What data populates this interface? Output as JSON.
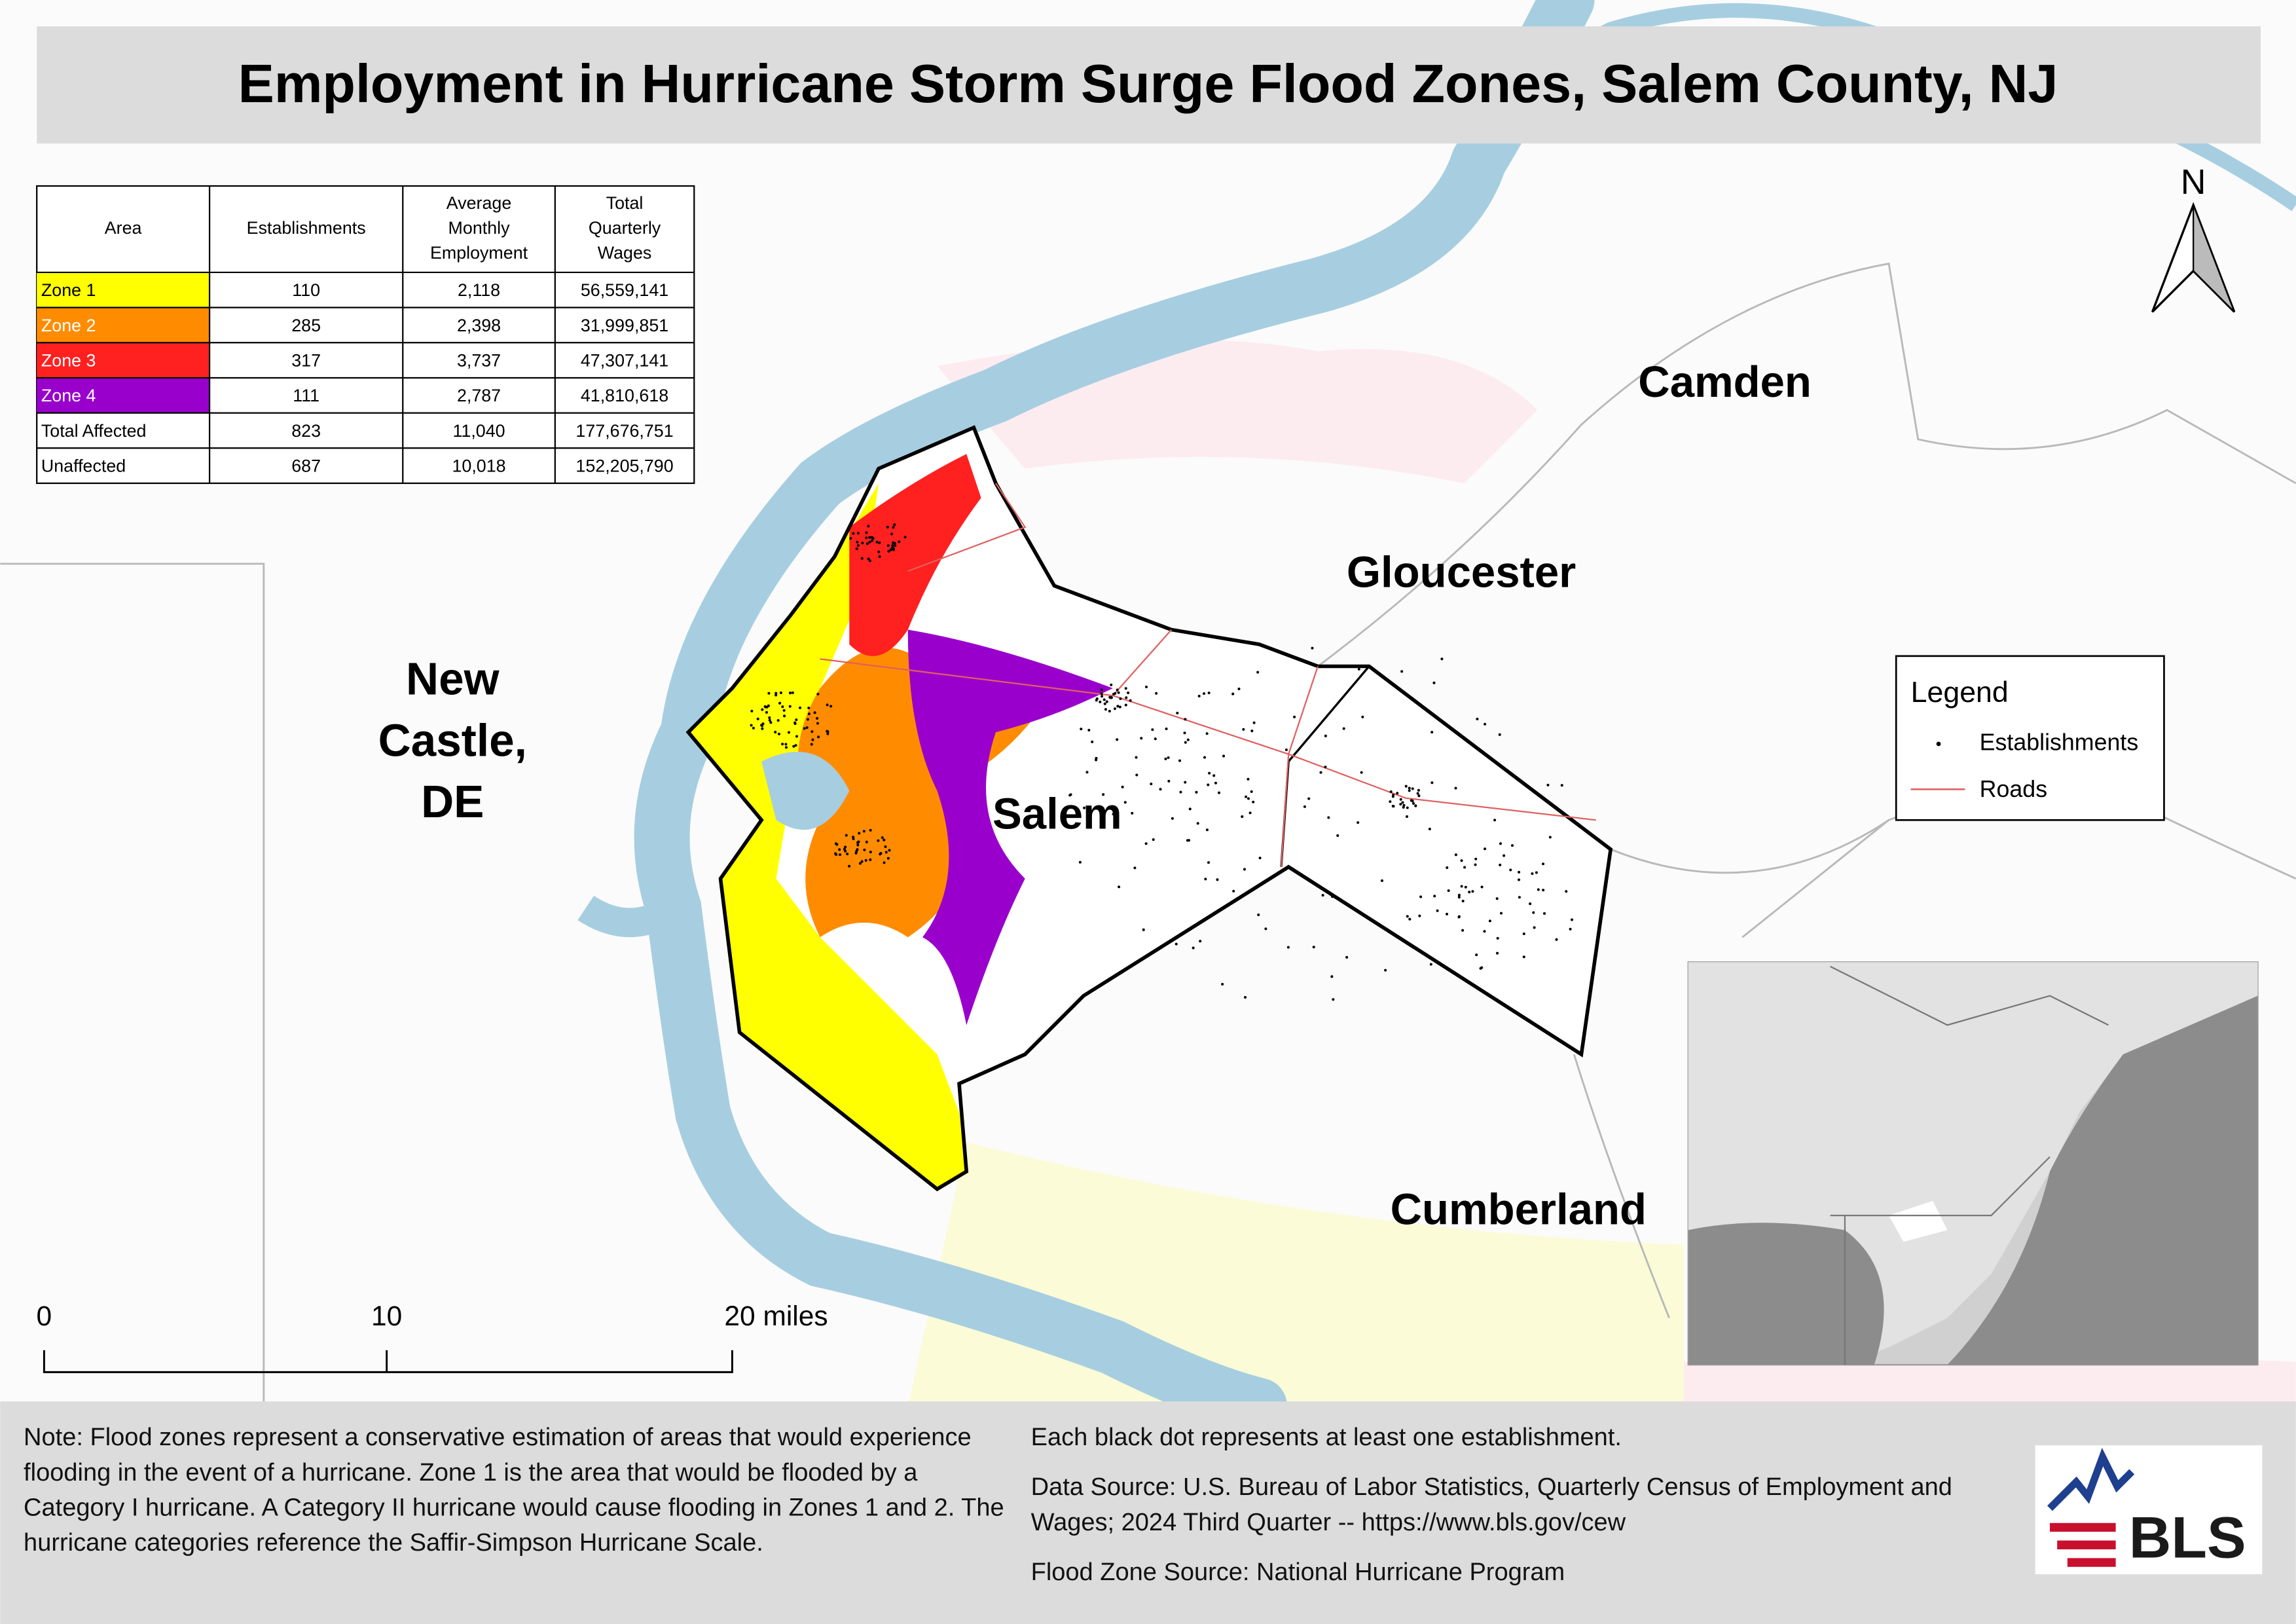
{
  "header": {
    "title": "Employment in Hurricane Storm Surge Flood Zones, Salem County, NJ"
  },
  "table": {
    "columns": [
      [
        "Area"
      ],
      [
        "Establishments"
      ],
      [
        "Average",
        "Monthly",
        "Employment"
      ],
      [
        "Total",
        "Quarterly",
        "Wages"
      ]
    ],
    "rows": [
      [
        "Zone 1",
        "110",
        "2,118",
        "56,559,141"
      ],
      [
        "Zone 2",
        "285",
        "2,398",
        "31,999,851"
      ],
      [
        "Zone 3",
        "317",
        "3,737",
        "47,307,141"
      ],
      [
        "Zone 4",
        "111",
        "2,787",
        "41,810,618"
      ],
      [
        "Total Affected",
        "823",
        "11,040",
        "177,676,751"
      ],
      [
        "Unaffected",
        "687",
        "10,018",
        "152,205,790"
      ]
    ]
  },
  "map": {
    "camden": "Camden",
    "gloucester": "Gloucester",
    "salem": "Salem",
    "cumberland": "Cumberland",
    "new_castle": [
      "New",
      "Castle,",
      "DE"
    ]
  },
  "north": "N",
  "legend": {
    "title": "Legend",
    "items": [
      "Establishments",
      "Roads"
    ]
  },
  "scale": [
    "0",
    "10",
    "20 miles"
  ],
  "notes": {
    "left": "Note: Flood zones represent a conservative estimation of areas that would experience flooding in the event of a hurricane. Zone 1 is the area that would be flooded by a Category I hurricane. A Category II hurricane would cause flooding in Zones 1 and 2. The hurricane categories reference the Saffir-Simpson Hurricane Scale.",
    "right": [
      "Each black dot represents at least one establishment.",
      "Data Source: U.S. Bureau of Labor Statistics, Quarterly Census of Employment and Wages; 2024 Third Quarter -- https://www.bls.gov/cew",
      "Flood Zone Source: National Hurricane Program"
    ]
  },
  "logo": "BLS"
}
